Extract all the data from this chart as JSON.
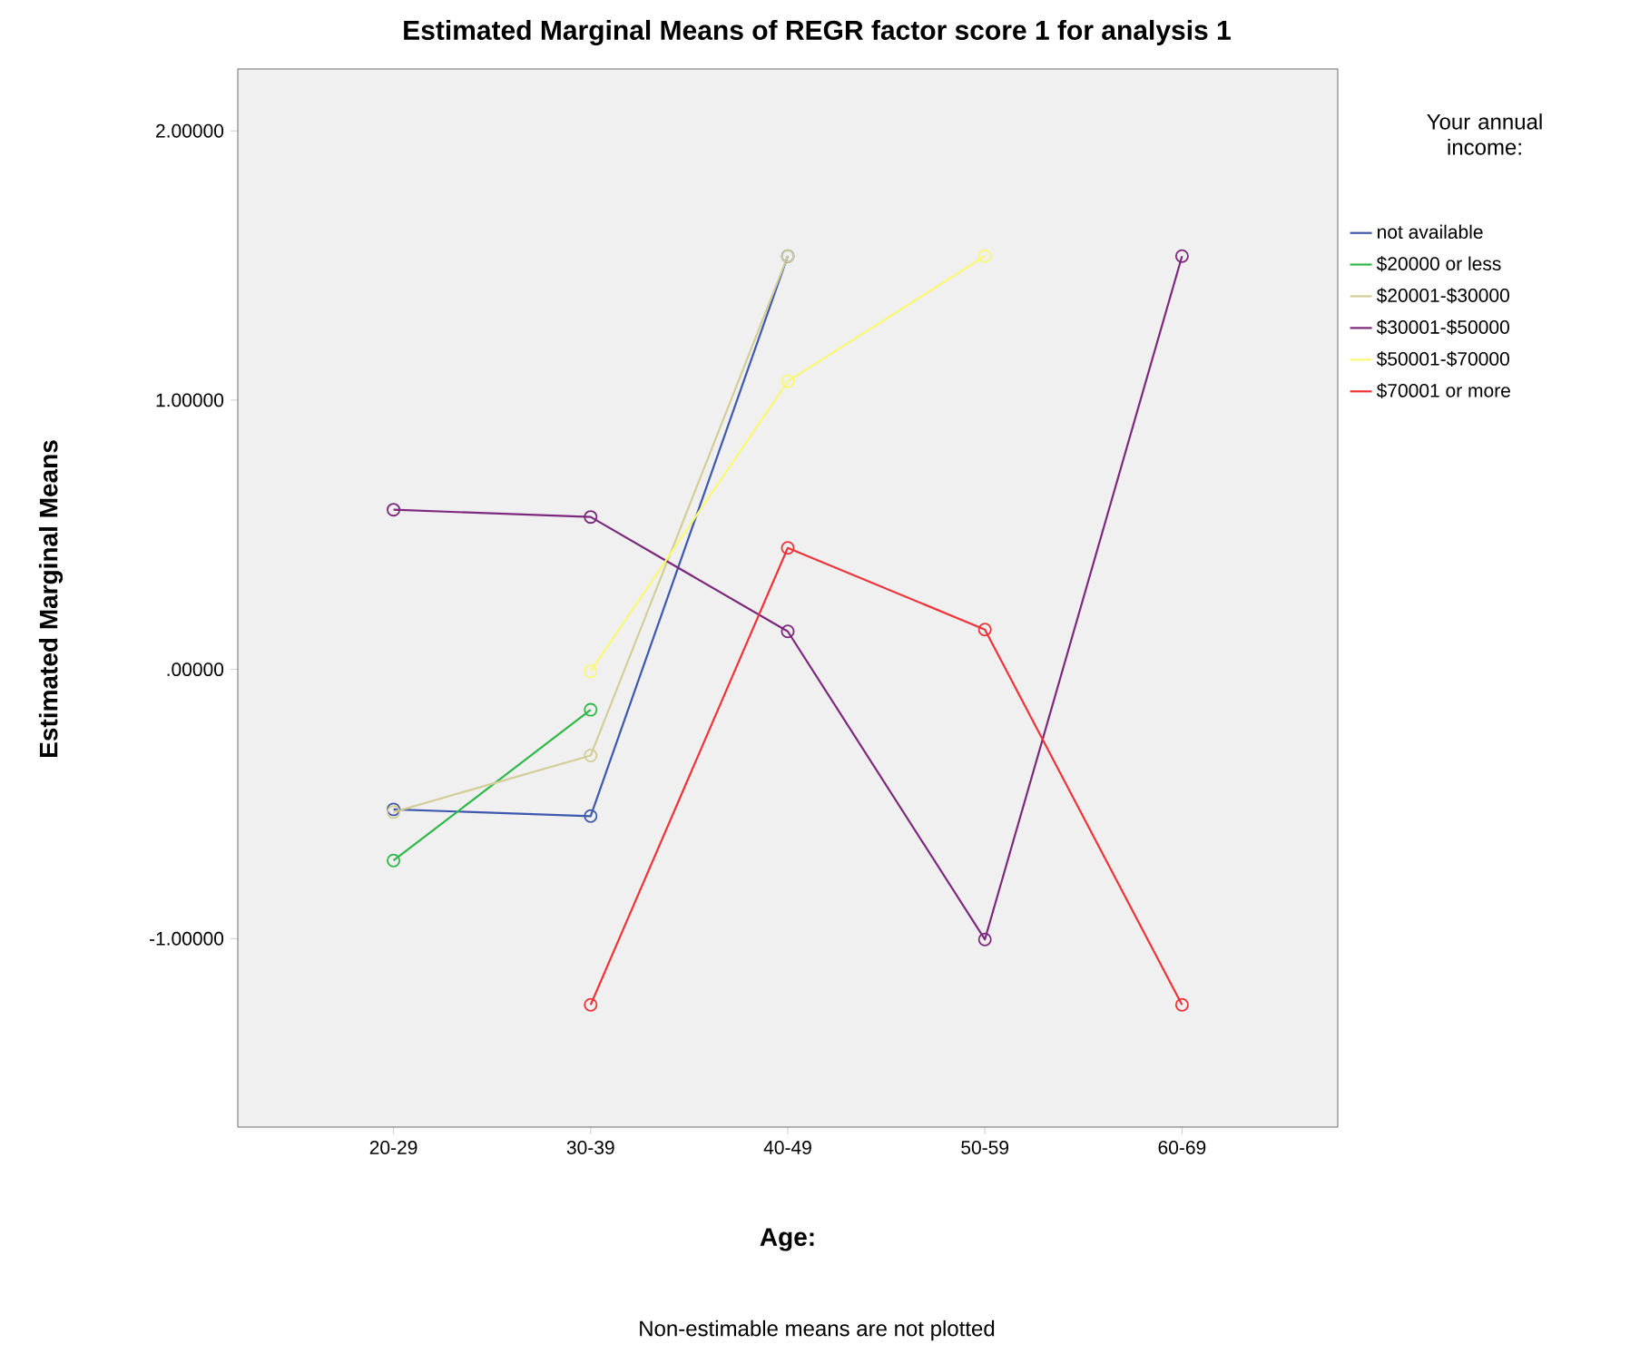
{
  "chart_data": {
    "type": "line",
    "title": "Estimated Marginal Means of REGR factor score 1 for analysis 1",
    "xlabel": "Age:",
    "ylabel": "Estimated Marginal Means",
    "legend_title": "Your annual income:",
    "categories": [
      "20-29",
      "30-39",
      "40-49",
      "50-59",
      "60-69"
    ],
    "series": [
      {
        "name": "not available",
        "color": "#3e58ac",
        "values": [
          -0.52,
          -0.545,
          1.535,
          null,
          null
        ]
      },
      {
        "name": "$20000 or less",
        "color": "#2eb848",
        "values": [
          -0.71,
          -0.15,
          null,
          null,
          null
        ]
      },
      {
        "name": "$20001-$30000",
        "color": "#d3ce97",
        "values": [
          -0.53,
          -0.32,
          1.535,
          null,
          null
        ]
      },
      {
        "name": "$30001-$50000",
        "color": "#7c287d",
        "values": [
          0.593,
          0.566,
          0.141,
          -1.003,
          1.535
        ]
      },
      {
        "name": "$50001-$70000",
        "color": "#fbf873",
        "values": [
          null,
          -0.007,
          1.07,
          1.535,
          null
        ]
      },
      {
        "name": "$70001 or more",
        "color": "#ef3338",
        "values": [
          null,
          -1.246,
          0.451,
          0.148,
          -1.246
        ]
      }
    ],
    "ylim": [
      -1.7,
      2.23
    ],
    "yticks": [
      {
        "value": -1,
        "label": "-1.00000"
      },
      {
        "value": 0,
        "label": ".00000"
      },
      {
        "value": 1,
        "label": "1.00000"
      },
      {
        "value": 2,
        "label": "2.00000"
      }
    ],
    "marker": "circle",
    "legend": "right",
    "annotations": [
      "Non-estimable means are not plotted"
    ]
  }
}
